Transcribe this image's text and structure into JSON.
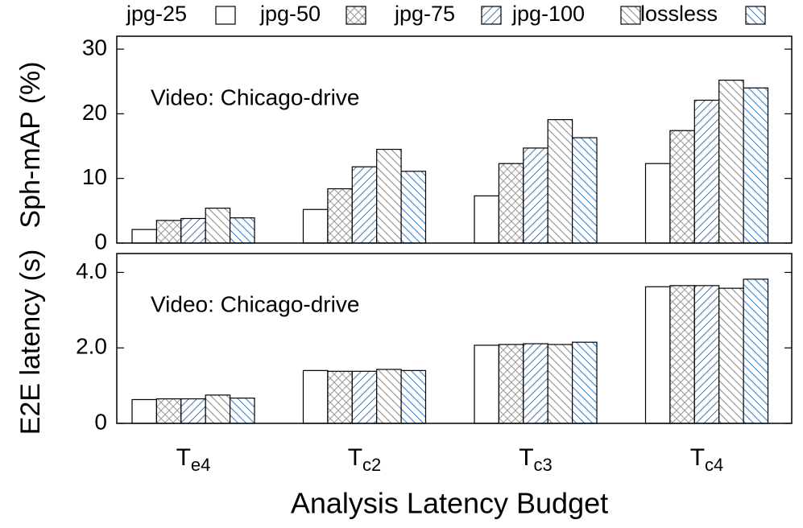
{
  "chart_data": [
    {
      "type": "bar",
      "ylabel": "Sph-mAP (%)",
      "annotation": "Video: Chicago-drive",
      "ylim": [
        0,
        32
      ],
      "yticks": [
        0,
        10,
        20,
        30
      ],
      "series": [
        {
          "name": "jpg-25",
          "color": "#000000",
          "hatch": "none",
          "values": [
            2.1,
            5.2,
            7.3,
            12.3
          ]
        },
        {
          "name": "jpg-50",
          "color": "#999999",
          "hatch": "cross",
          "values": [
            3.5,
            8.4,
            12.3,
            17.4
          ]
        },
        {
          "name": "jpg-75",
          "color": "#3a7cc0",
          "hatch": "up",
          "values": [
            3.8,
            11.8,
            14.7,
            22.1
          ]
        },
        {
          "name": "jpg-100",
          "color": "#888888",
          "hatch": "down",
          "values": [
            5.4,
            14.5,
            19.1,
            25.2
          ]
        },
        {
          "name": "lossless",
          "color": "#3a7cc0",
          "hatch": "down",
          "values": [
            3.9,
            11.1,
            16.3,
            24.0
          ]
        }
      ]
    },
    {
      "type": "bar",
      "ylabel": "E2E latency (s)",
      "annotation": "Video: Chicago-drive",
      "xlabel": "Analysis Latency Budget",
      "categories": [
        "Te4",
        "Tc2",
        "Tc3",
        "Tc4"
      ],
      "ylim": [
        0,
        4.5
      ],
      "yticks": [
        0,
        {
          "value": 2,
          "label": "2.0"
        },
        {
          "value": 4,
          "label": "4.0"
        }
      ],
      "series": [
        {
          "name": "jpg-25",
          "color": "#000000",
          "hatch": "none",
          "values": [
            0.63,
            1.4,
            2.07,
            3.62
          ]
        },
        {
          "name": "jpg-50",
          "color": "#999999",
          "hatch": "cross",
          "values": [
            0.65,
            1.38,
            2.09,
            3.65
          ]
        },
        {
          "name": "jpg-75",
          "color": "#3a7cc0",
          "hatch": "up",
          "values": [
            0.65,
            1.38,
            2.11,
            3.65
          ]
        },
        {
          "name": "jpg-100",
          "color": "#888888",
          "hatch": "down",
          "values": [
            0.75,
            1.43,
            2.09,
            3.58
          ]
        },
        {
          "name": "lossless",
          "color": "#3a7cc0",
          "hatch": "down",
          "values": [
            0.67,
            1.4,
            2.15,
            3.82
          ]
        }
      ]
    }
  ]
}
